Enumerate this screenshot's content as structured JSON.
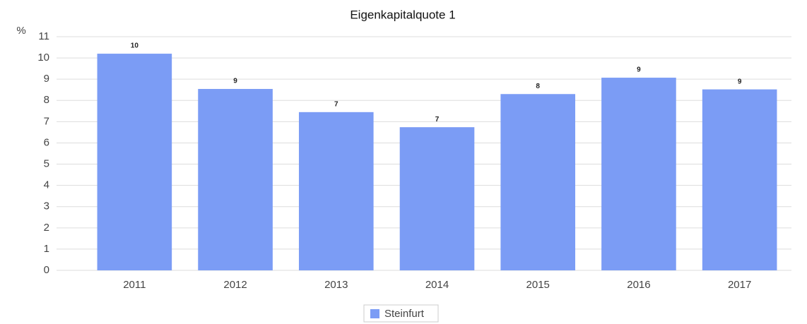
{
  "chart_data": {
    "type": "bar",
    "title": "Eigenkapitalquote 1",
    "y_label": "%",
    "categories": [
      "2011",
      "2012",
      "2013",
      "2014",
      "2015",
      "2016",
      "2017"
    ],
    "series": [
      {
        "name": "Steinfurt",
        "color": "#7b9cf5",
        "values": [
          10.2,
          8.54,
          7.45,
          6.74,
          8.3,
          9.07,
          8.52
        ],
        "value_labels": [
          "10",
          "9",
          "7",
          "7",
          "8",
          "9",
          "9"
        ]
      }
    ],
    "ylim": [
      0,
      11
    ],
    "yticks": [
      0,
      1,
      2,
      3,
      4,
      5,
      6,
      7,
      8,
      9,
      10,
      11
    ],
    "grid": true,
    "legend": "bottom"
  }
}
